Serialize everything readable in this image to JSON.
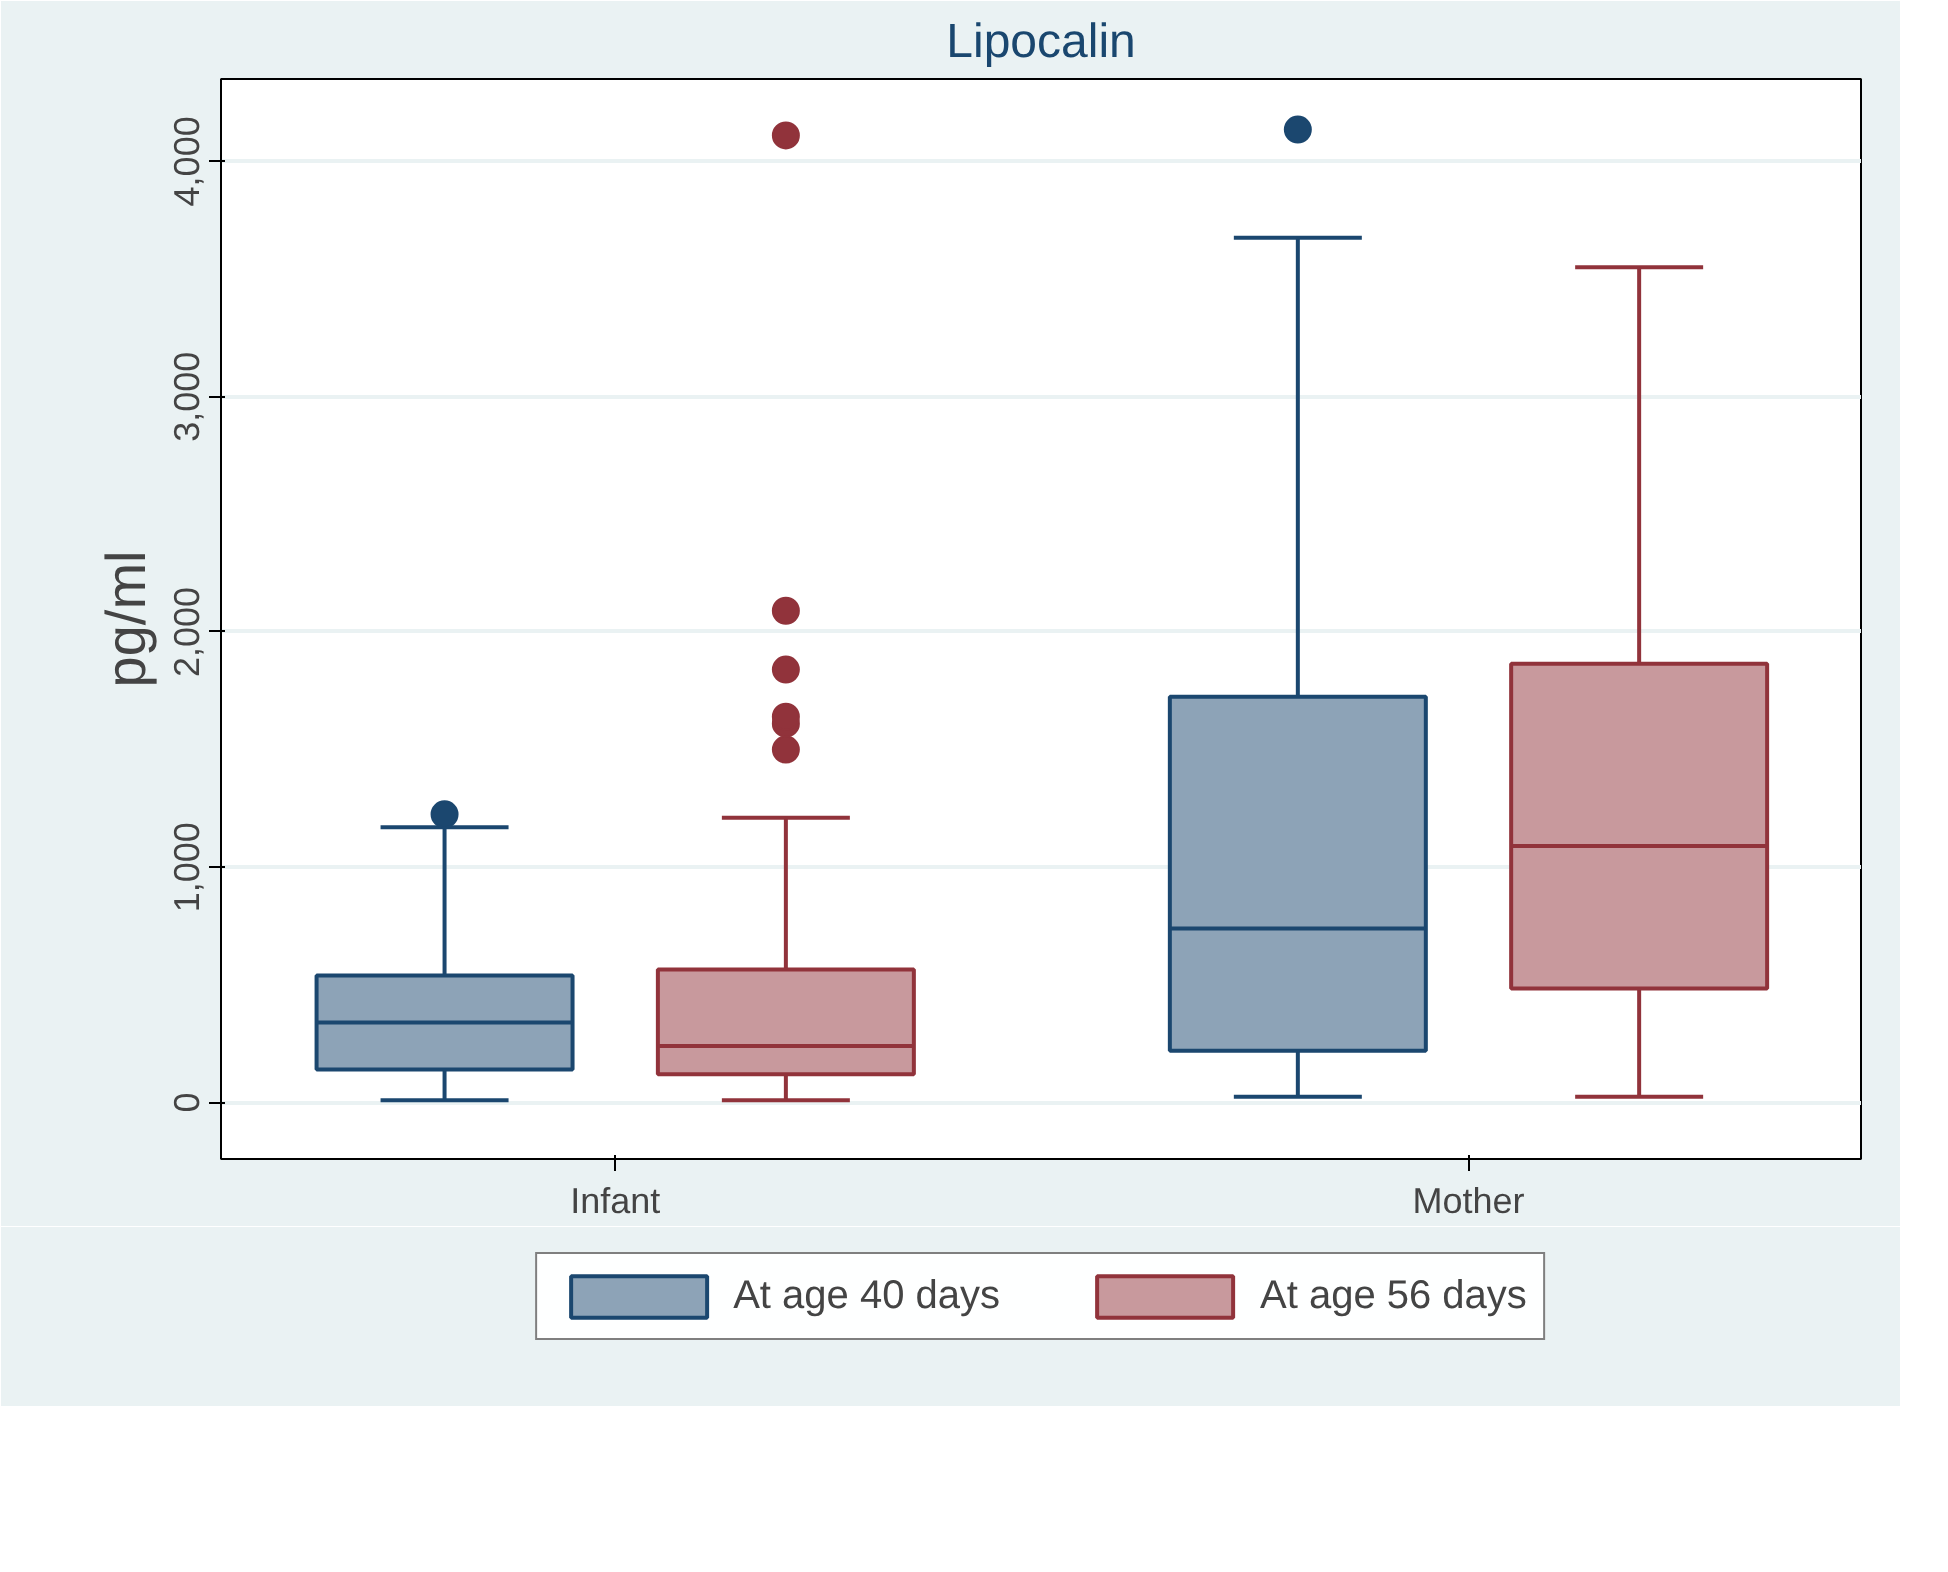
{
  "chart_data": {
    "type": "box",
    "title": "Lipocalin",
    "ylabel": "pg/ml",
    "categories": [
      "Infant",
      "Mother"
    ],
    "series": [
      {
        "name": "At age 40 days",
        "color": "#8da3b7",
        "boxes": [
          {
            "low": 10,
            "q1": 140,
            "median": 340,
            "q3": 540,
            "high": 1170,
            "outliers": [
              1225
            ]
          },
          {
            "low": 25,
            "q1": 220,
            "median": 740,
            "q3": 1725,
            "high": 3675,
            "outliers": [
              4135
            ]
          }
        ]
      },
      {
        "name": "At age 56 days",
        "color": "#c8999d",
        "boxes": [
          {
            "low": 10,
            "q1": 120,
            "median": 240,
            "q3": 565,
            "high": 1210,
            "outliers": [
              1500,
              1610,
              1640,
              1840,
              2090,
              4110
            ]
          },
          {
            "low": 25,
            "q1": 485,
            "median": 1090,
            "q3": 1865,
            "high": 3550
          }
        ]
      }
    ],
    "ylim": [
      -240,
      4350
    ],
    "yticks": [
      0,
      {
        "value": 1000,
        "label": "1,000"
      },
      {
        "value": 2000,
        "label": "2,000"
      },
      {
        "value": 3000,
        "label": "3,000"
      },
      {
        "value": 4000,
        "label": "4,000"
      }
    ],
    "grid": "y",
    "legend": "bottom"
  }
}
